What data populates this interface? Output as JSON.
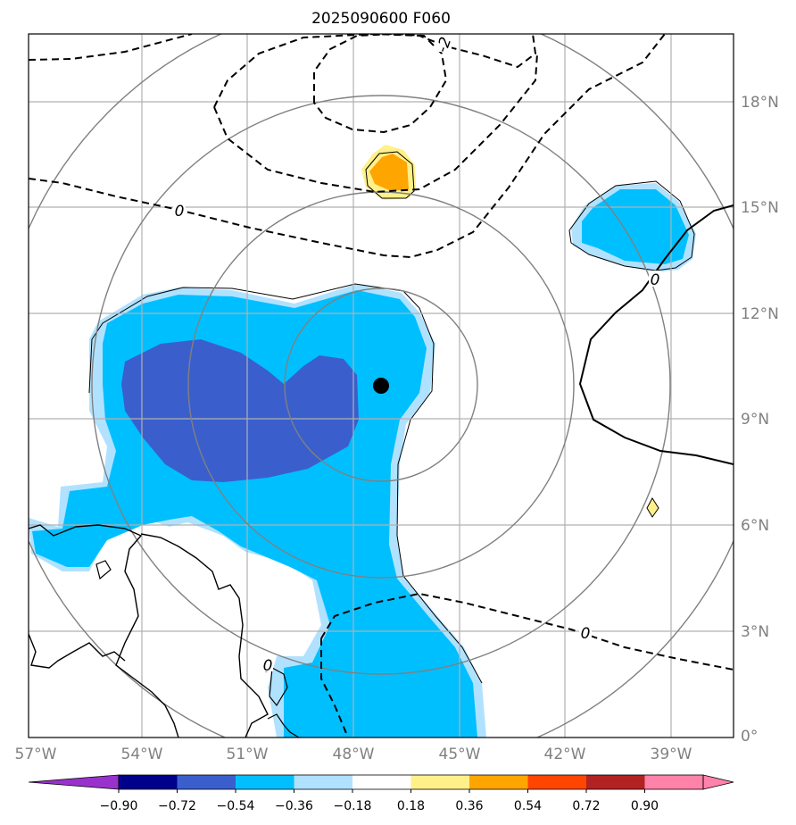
{
  "title": "2025090600 F060",
  "map": {
    "lon_labels": [
      "57°W",
      "54°W",
      "51°W",
      "48°W",
      "45°W",
      "42°W",
      "39°W"
    ],
    "lat_labels": [
      "18°N",
      "15°N",
      "12°N",
      "9°N",
      "6°N",
      "3°N",
      "0°"
    ],
    "contour_labels": [
      "0",
      "0",
      "0",
      "-2",
      "0"
    ],
    "center_marker": "storm-center",
    "colors": {
      "dark_blue": "#3a5fcd",
      "cyan": "#00bfff",
      "light_blue": "#b0e2ff",
      "orange": "#ffa500",
      "light_yellow": "#fff08a",
      "gridline": "#b0b0b0",
      "range_ring": "#808080"
    }
  },
  "colorbar": {
    "ticks": [
      "−0.90",
      "−0.72",
      "−0.54",
      "−0.36",
      "−0.18",
      "0.18",
      "0.36",
      "0.54",
      "0.72",
      "0.90"
    ],
    "colors": [
      "#9932cc",
      "#00008b",
      "#3a5fcd",
      "#00bfff",
      "#b0e2ff",
      "#ffffff",
      "#fff08a",
      "#ffa500",
      "#ff4500",
      "#b22222",
      "#ff82ab",
      "#ff82ab"
    ]
  }
}
